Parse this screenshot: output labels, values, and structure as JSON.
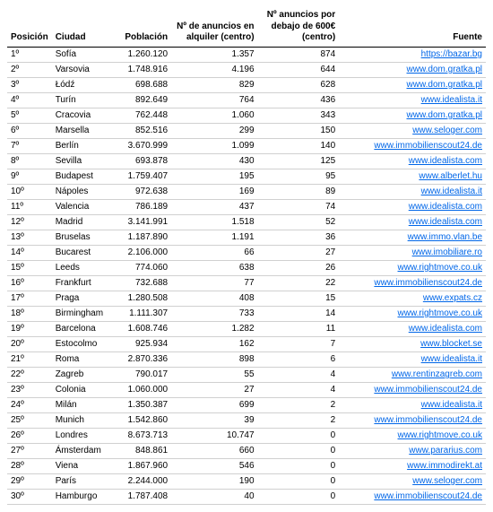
{
  "columns": {
    "position": "Posición",
    "city": "Ciudad",
    "population": "Población",
    "ads": "Nº de anuncios en alquiler (centro)",
    "under600": "Nº anuncios por debajo de 600€ (centro)",
    "source": "Fuente"
  },
  "rows": [
    {
      "pos": "1º",
      "city": "Sofía",
      "pop": "1.260.120",
      "ads": "1.357",
      "under": "874",
      "src": "https://bazar.bg"
    },
    {
      "pos": "2º",
      "city": "Varsovia",
      "pop": "1.748.916",
      "ads": "4.196",
      "under": "644",
      "src": "www.dom.gratka.pl"
    },
    {
      "pos": "3º",
      "city": "Łódź",
      "pop": "698.688",
      "ads": "829",
      "under": "628",
      "src": "www.dom.gratka.pl"
    },
    {
      "pos": "4º",
      "city": "Turín",
      "pop": "892.649",
      "ads": "764",
      "under": "436",
      "src": "www.idealista.it"
    },
    {
      "pos": "5º",
      "city": "Cracovia",
      "pop": "762.448",
      "ads": "1.060",
      "under": "343",
      "src": "www.dom.gratka.pl"
    },
    {
      "pos": "6º",
      "city": "Marsella",
      "pop": "852.516",
      "ads": "299",
      "under": "150",
      "src": "www.seloger.com"
    },
    {
      "pos": "7º",
      "city": "Berlín",
      "pop": "3.670.999",
      "ads": "1.099",
      "under": "140",
      "src": "www.immobilienscout24.de"
    },
    {
      "pos": "8º",
      "city": "Sevilla",
      "pop": "693.878",
      "ads": "430",
      "under": "125",
      "src": "www.idealista.com"
    },
    {
      "pos": "9º",
      "city": "Budapest",
      "pop": "1.759.407",
      "ads": "195",
      "under": "95",
      "src": "www.alberlet.hu"
    },
    {
      "pos": "10º",
      "city": "Nápoles",
      "pop": "972.638",
      "ads": "169",
      "under": "89",
      "src": "www.idealista.it"
    },
    {
      "pos": "11º",
      "city": "Valencia",
      "pop": "786.189",
      "ads": "437",
      "under": "74",
      "src": "www.idealista.com"
    },
    {
      "pos": "12º",
      "city": "Madrid",
      "pop": "3.141.991",
      "ads": "1.518",
      "under": "52",
      "src": "www.idealista.com"
    },
    {
      "pos": "13º",
      "city": "Bruselas",
      "pop": "1.187.890",
      "ads": "1.191",
      "under": "36",
      "src": "www.immo.vlan.be"
    },
    {
      "pos": "14º",
      "city": "Bucarest",
      "pop": "2.106.000",
      "ads": "66",
      "under": "27",
      "src": "www.imobiliare.ro"
    },
    {
      "pos": "15º",
      "city": "Leeds",
      "pop": "774.060",
      "ads": "638",
      "under": "26",
      "src": "www.rightmove.co.uk"
    },
    {
      "pos": "16º",
      "city": "Frankfurt",
      "pop": "732.688",
      "ads": "77",
      "under": "22",
      "src": "www.immobilienscout24.de"
    },
    {
      "pos": "17º",
      "city": "Praga",
      "pop": "1.280.508",
      "ads": "408",
      "under": "15",
      "src": "www.expats.cz"
    },
    {
      "pos": "18º",
      "city": "Birmingham",
      "pop": "1.111.307",
      "ads": "733",
      "under": "14",
      "src": "www.rightmove.co.uk"
    },
    {
      "pos": "19º",
      "city": "Barcelona",
      "pop": "1.608.746",
      "ads": "1.282",
      "under": "11",
      "src": "www.idealista.com"
    },
    {
      "pos": "20º",
      "city": "Estocolmo",
      "pop": "925.934",
      "ads": "162",
      "under": "7",
      "src": "www.blocket.se"
    },
    {
      "pos": "21º",
      "city": "Roma",
      "pop": "2.870.336",
      "ads": "898",
      "under": "6",
      "src": "www.idealista.it"
    },
    {
      "pos": "22º",
      "city": "Zagreb",
      "pop": "790.017",
      "ads": "55",
      "under": "4",
      "src": "www.rentinzagreb.com"
    },
    {
      "pos": "23º",
      "city": "Colonia",
      "pop": "1.060.000",
      "ads": "27",
      "under": "4",
      "src": "www.immobilienscout24.de"
    },
    {
      "pos": "24º",
      "city": "Milán",
      "pop": "1.350.387",
      "ads": "699",
      "under": "2",
      "src": "www.idealista.it"
    },
    {
      "pos": "25º",
      "city": "Munich",
      "pop": "1.542.860",
      "ads": "39",
      "under": "2",
      "src": "www.immobilienscout24.de"
    },
    {
      "pos": "26º",
      "city": "Londres",
      "pop": "8.673.713",
      "ads": "10.747",
      "under": "0",
      "src": "www.rightmove.co.uk"
    },
    {
      "pos": "27º",
      "city": "Ámsterdam",
      "pop": "848.861",
      "ads": "660",
      "under": "0",
      "src": "www.pararius.com"
    },
    {
      "pos": "28º",
      "city": "Viena",
      "pop": "1.867.960",
      "ads": "546",
      "under": "0",
      "src": "www.immodirekt.at"
    },
    {
      "pos": "29º",
      "city": "París",
      "pop": "2.244.000",
      "ads": "190",
      "under": "0",
      "src": "www.seloger.com"
    },
    {
      "pos": "30º",
      "city": "Hamburgo",
      "pop": "1.787.408",
      "ads": "40",
      "under": "0",
      "src": "www.immobilienscout24.de"
    }
  ]
}
